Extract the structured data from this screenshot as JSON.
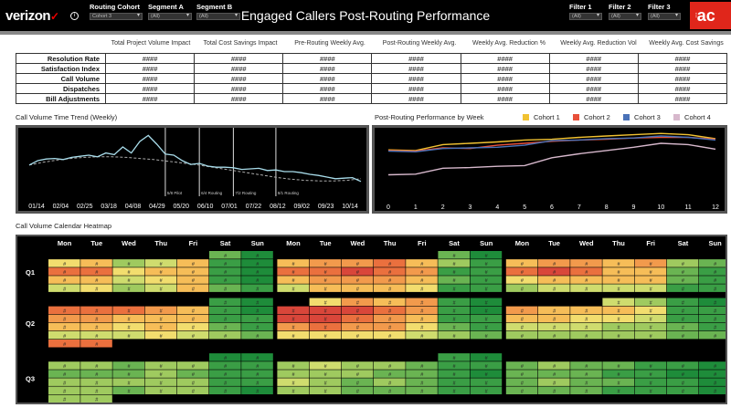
{
  "header": {
    "logo": "verizon",
    "logo_mark": "✓",
    "info_icon": "i",
    "title": "Engaged Callers Post-Routing Performance",
    "brand": "ac",
    "brand_icon": "⫶",
    "filters": [
      {
        "label": "Routing Cohort",
        "value": "Cohort 3"
      },
      {
        "label": "Segment A",
        "value": "(All)"
      },
      {
        "label": "Segment B",
        "value": "(All)"
      },
      {
        "label": "Filter 1",
        "value": "(All)"
      },
      {
        "label": "Filter 2",
        "value": "(All)"
      },
      {
        "label": "Filter 3",
        "value": "(All)"
      }
    ]
  },
  "kpi": {
    "columns": [
      "Total Project Volume Impact",
      "Total Cost Savings Impact",
      "Pre-Routing Weekly Avg.",
      "Post-Routing Weekly Avg.",
      "Weekly Avg. Reduction %",
      "Weekly Avg. Reduction Vol",
      "Weekly Avg. Cost Savings"
    ],
    "rows": [
      {
        "label": "Resolution Rate",
        "cells": [
          "####",
          "####",
          "####",
          "####",
          "####",
          "####",
          "####"
        ]
      },
      {
        "label": "Satisfaction Index",
        "cells": [
          "####",
          "####",
          "####",
          "####",
          "####",
          "####",
          "####"
        ]
      },
      {
        "label": "Call Volume",
        "cells": [
          "####",
          "####",
          "####",
          "####",
          "####",
          "####",
          "####"
        ]
      },
      {
        "label": "Dispatches",
        "cells": [
          "####",
          "####",
          "####",
          "####",
          "####",
          "####",
          "####"
        ]
      },
      {
        "label": "Bill Adjustments",
        "cells": [
          "####",
          "####",
          "####",
          "####",
          "####",
          "####",
          "####"
        ]
      }
    ]
  },
  "trend": {
    "title": "Call Volume Time Trend (Weekly)",
    "x_labels": [
      "01/14",
      "02/04",
      "02/25",
      "03/18",
      "04/08",
      "04/29",
      "05/20",
      "06/10",
      "07/01",
      "07/22",
      "08/12",
      "09/02",
      "09/23",
      "10/14"
    ],
    "values": [
      52,
      60,
      63,
      64,
      62,
      66,
      68,
      70,
      67,
      74,
      71,
      85,
      74,
      95,
      106,
      90,
      72,
      70,
      60,
      53,
      55,
      50,
      48,
      48,
      47,
      44,
      45,
      46,
      42,
      43,
      40,
      40,
      38,
      35,
      33,
      30,
      27,
      28,
      29,
      22
    ],
    "trend_values": [
      52,
      57,
      61,
      64,
      66,
      67,
      67,
      66,
      64,
      62,
      59,
      56,
      53,
      49,
      45,
      41,
      37,
      33,
      29,
      26,
      24,
      23,
      23,
      24,
      27
    ],
    "routing_markers": [
      {
        "index": 16,
        "label": "5/8 Pilot"
      },
      {
        "index": 20,
        "label": "6/4 Routing"
      },
      {
        "index": 24,
        "label": "7/2 Routing"
      },
      {
        "index": 29,
        "label": "8/1 Routing"
      }
    ]
  },
  "post": {
    "title": "Post-Routing Performance by Week",
    "legend": [
      {
        "name": "Cohort 1",
        "color": "#f1c232"
      },
      {
        "name": "Cohort 2",
        "color": "#e8503a"
      },
      {
        "name": "Cohort 3",
        "color": "#4a72b8"
      },
      {
        "name": "Cohort 4",
        "color": "#d7b8cc"
      }
    ]
  },
  "chart_data": {
    "type": "line",
    "title": "Post-Routing Performance by Week",
    "x": [
      0,
      1,
      2,
      3,
      4,
      5,
      6,
      7,
      8,
      9,
      10,
      11,
      12
    ],
    "ylim": [
      0,
      100
    ],
    "series": [
      {
        "name": "Cohort 1",
        "values": [
          72,
          71,
          80,
          82,
          84,
          87,
          88,
          91,
          93,
          95,
          97,
          95,
          89
        ]
      },
      {
        "name": "Cohort 2",
        "values": [
          71,
          70,
          75,
          74,
          79,
          82,
          85,
          87,
          88,
          90,
          91,
          91,
          88
        ]
      },
      {
        "name": "Cohort 3",
        "values": [
          70,
          69,
          74,
          75,
          76,
          79,
          86,
          87,
          89,
          90,
          93,
          91,
          87
        ]
      },
      {
        "name": "Cohort 4",
        "values": [
          34,
          35,
          44,
          45,
          47,
          48,
          60,
          66,
          71,
          76,
          82,
          80,
          73
        ]
      }
    ]
  },
  "heatmap": {
    "title": "Call Volume Calendar Heatmap",
    "days": [
      "Mon",
      "Tue",
      "Wed",
      "Thu",
      "Fri",
      "Sat",
      "Sun"
    ],
    "quarters": [
      "Q1",
      "Q2",
      "Q3"
    ],
    "cell_label": "#",
    "colors": [
      "#1e8c3a",
      "#3a9e45",
      "#6ab452",
      "#9fca5f",
      "#cfdc6e",
      "#f2dd6e",
      "#f6bd58",
      "#f29a4c",
      "#ea703e",
      "#d9463a"
    ],
    "grid": [
      [
        [
          -1,
          -1,
          -1,
          -1,
          -1,
          2,
          0,
          -1,
          -1,
          -1,
          -1,
          -1,
          2,
          0,
          -1,
          -1,
          -1,
          -1,
          -1,
          -1,
          -1
        ],
        [
          5,
          6,
          3,
          4,
          6,
          1,
          0,
          6,
          7,
          7,
          8,
          6,
          3,
          1,
          6,
          7,
          7,
          6,
          7,
          3,
          2
        ],
        [
          8,
          8,
          5,
          6,
          6,
          1,
          0,
          8,
          8,
          9,
          8,
          7,
          1,
          1,
          8,
          9,
          8,
          6,
          6,
          2,
          1
        ],
        [
          6,
          6,
          4,
          5,
          6,
          1,
          0,
          6,
          7,
          7,
          7,
          6,
          2,
          1,
          5,
          6,
          6,
          6,
          6,
          2,
          1
        ],
        [
          4,
          5,
          3,
          4,
          6,
          2,
          1,
          4,
          6,
          6,
          6,
          5,
          1,
          1,
          3,
          4,
          4,
          4,
          4,
          1,
          1
        ]
      ],
      [
        [
          -1,
          -1,
          -1,
          -1,
          -1,
          1,
          0,
          -1,
          5,
          7,
          6,
          7,
          1,
          0,
          -1,
          -1,
          -1,
          4,
          3,
          1,
          0
        ],
        [
          8,
          8,
          8,
          7,
          6,
          1,
          0,
          9,
          9,
          9,
          8,
          7,
          1,
          0,
          7,
          6,
          6,
          6,
          5,
          1,
          1
        ],
        [
          7,
          7,
          6,
          6,
          6,
          1,
          1,
          9,
          9,
          8,
          7,
          6,
          1,
          1,
          6,
          6,
          5,
          5,
          4,
          1,
          1
        ],
        [
          6,
          6,
          5,
          6,
          5,
          2,
          1,
          7,
          8,
          7,
          7,
          5,
          2,
          1,
          4,
          4,
          4,
          3,
          3,
          2,
          1
        ],
        [
          4,
          4,
          4,
          5,
          4,
          3,
          2,
          5,
          5,
          5,
          5,
          4,
          3,
          2,
          3,
          3,
          3,
          3,
          3,
          2,
          2
        ],
        [
          8,
          8,
          -1,
          -1,
          -1,
          -1,
          -1,
          -1,
          -1,
          -1,
          -1,
          -1,
          -1,
          -1,
          -1,
          -1,
          -1,
          -1,
          -1,
          -1,
          -1
        ]
      ],
      [
        [
          -1,
          -1,
          -1,
          -1,
          -1,
          0,
          0,
          -1,
          -1,
          -1,
          -1,
          -1,
          1,
          0,
          -1,
          -1,
          -1,
          -1,
          -1,
          -1,
          -1
        ],
        [
          3,
          3,
          2,
          3,
          3,
          1,
          1,
          3,
          4,
          3,
          3,
          2,
          1,
          1,
          2,
          3,
          2,
          2,
          1,
          1,
          0
        ],
        [
          2,
          2,
          2,
          3,
          2,
          1,
          1,
          3,
          3,
          3,
          2,
          2,
          1,
          0,
          2,
          2,
          2,
          1,
          1,
          0,
          0
        ],
        [
          3,
          3,
          3,
          3,
          3,
          1,
          1,
          4,
          3,
          2,
          3,
          2,
          1,
          1,
          2,
          3,
          2,
          2,
          1,
          1,
          0
        ],
        [
          3,
          3,
          2,
          3,
          3,
          1,
          0,
          3,
          3,
          2,
          2,
          2,
          1,
          1,
          2,
          2,
          2,
          1,
          1,
          1,
          0
        ],
        [
          3,
          3,
          -1,
          -1,
          -1,
          -1,
          -1,
          -1,
          -1,
          -1,
          -1,
          -1,
          -1,
          -1,
          -1,
          -1,
          -1,
          -1,
          -1,
          -1,
          -1
        ]
      ]
    ]
  }
}
